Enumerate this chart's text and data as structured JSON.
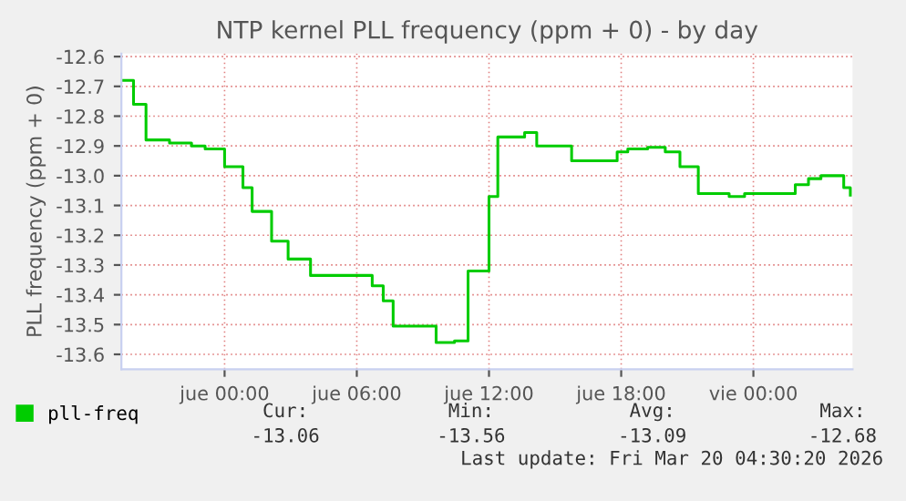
{
  "chart_data": {
    "type": "step",
    "title": "NTP kernel PLL frequency (ppm + 0) - by day",
    "ylabel": "PLL frequency (ppm + 0)",
    "x": [
      "2026-03-18T19:19",
      "2026-03-18T19:52",
      "2026-03-18T20:26",
      "2026-03-18T21:30",
      "2026-03-18T22:30",
      "2026-03-18T23:07",
      "2026-03-19T00:00",
      "2026-03-19T00:50",
      "2026-03-19T01:15",
      "2026-03-19T02:08",
      "2026-03-19T02:53",
      "2026-03-19T03:54",
      "2026-03-19T06:42",
      "2026-03-19T07:12",
      "2026-03-19T07:39",
      "2026-03-19T09:36",
      "2026-03-19T10:26",
      "2026-03-19T11:03",
      "2026-03-19T12:00",
      "2026-03-19T12:24",
      "2026-03-19T13:37",
      "2026-03-19T14:10",
      "2026-03-19T15:45",
      "2026-03-19T17:49",
      "2026-03-19T18:18",
      "2026-03-19T19:12",
      "2026-03-19T20:00",
      "2026-03-19T20:40",
      "2026-03-19T21:30",
      "2026-03-19T22:54",
      "2026-03-19T23:36",
      "2026-03-20T00:18",
      "2026-03-20T01:22",
      "2026-03-20T01:54",
      "2026-03-20T02:30",
      "2026-03-20T03:04",
      "2026-03-20T04:06",
      "2026-03-20T04:24"
    ],
    "series": [
      {
        "name": "pll-freq",
        "color": "#00cc00",
        "values": [
          -12.68,
          -12.76,
          -12.88,
          -12.89,
          -12.9,
          -12.91,
          -12.97,
          -13.04,
          -13.12,
          -13.22,
          -13.28,
          -13.335,
          -13.37,
          -13.42,
          -13.505,
          -13.56,
          -13.555,
          -13.32,
          -13.07,
          -12.87,
          -12.855,
          -12.9,
          -12.95,
          -12.92,
          -12.91,
          -12.905,
          -12.92,
          -12.97,
          -13.06,
          -13.07,
          -13.06,
          -13.06,
          -13.06,
          -13.03,
          -13.01,
          -13.0,
          -13.04,
          -13.065
        ]
      }
    ],
    "xlim": [
      "2026-03-18T19:19",
      "2026-03-20T04:30"
    ],
    "ylim": [
      -13.65,
      -12.59
    ],
    "xticks": [
      {
        "value": "2026-03-19T00:00",
        "label": "jue 00:00"
      },
      {
        "value": "2026-03-19T06:00",
        "label": "jue 06:00"
      },
      {
        "value": "2026-03-19T12:00",
        "label": "jue 12:00"
      },
      {
        "value": "2026-03-19T18:00",
        "label": "jue 18:00"
      },
      {
        "value": "2026-03-20T00:00",
        "label": "vie 00:00"
      }
    ],
    "yticks": [
      {
        "value": -13.6,
        "label": "-13.6"
      },
      {
        "value": -13.5,
        "label": "-13.5"
      },
      {
        "value": -13.4,
        "label": "-13.4"
      },
      {
        "value": -13.3,
        "label": "-13.3"
      },
      {
        "value": -13.2,
        "label": "-13.2"
      },
      {
        "value": -13.1,
        "label": "-13.1"
      },
      {
        "value": -13.0,
        "label": "-13.0"
      },
      {
        "value": -12.9,
        "label": "-12.9"
      },
      {
        "value": -12.8,
        "label": "-12.8"
      },
      {
        "value": -12.7,
        "label": "-12.7"
      },
      {
        "value": -12.6,
        "label": "-12.6"
      }
    ],
    "grid": true,
    "legend": "bottom",
    "annotations": [
      "Cur:",
      "-13.06",
      "Min:",
      "-13.56",
      "Avg:",
      "-13.09",
      "Max:",
      "-12.68",
      "Last update: Fri Mar 20 04:30:20 2026"
    ]
  }
}
